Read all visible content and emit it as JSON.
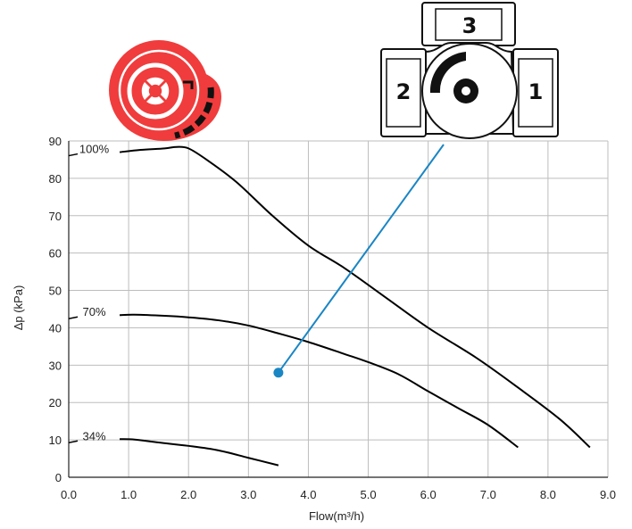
{
  "chart_data": {
    "type": "line",
    "title": "",
    "xlabel": "Flow(m³/h)",
    "ylabel": "Δp (kPa)",
    "xlim": [
      0,
      9
    ],
    "ylim": [
      0,
      90
    ],
    "x_ticks": [
      "0.0",
      "1.0",
      "2.0",
      "3.0",
      "4.0",
      "5.0",
      "6.0",
      "7.0",
      "8.0",
      "9.0"
    ],
    "y_ticks": [
      "0",
      "10",
      "20",
      "30",
      "40",
      "50",
      "60",
      "70",
      "80",
      "90"
    ],
    "grid": true,
    "series": [
      {
        "name": "100%",
        "color": "#000000",
        "points": [
          [
            0.85,
            87
          ],
          [
            1.2,
            87.6
          ],
          [
            1.6,
            88
          ],
          [
            1.8,
            88.4
          ],
          [
            2.0,
            88
          ],
          [
            2.3,
            85
          ],
          [
            2.8,
            79
          ],
          [
            3.4,
            70
          ],
          [
            4.0,
            62
          ],
          [
            4.6,
            56
          ],
          [
            5.3,
            48
          ],
          [
            6.0,
            40
          ],
          [
            6.8,
            32
          ],
          [
            7.5,
            24
          ],
          [
            8.2,
            15.5
          ],
          [
            8.7,
            8
          ]
        ]
      },
      {
        "name": "70%",
        "color": "#000000",
        "points": [
          [
            0.85,
            43.4
          ],
          [
            1.1,
            43.5
          ],
          [
            1.6,
            43.2
          ],
          [
            2.0,
            42.8
          ],
          [
            2.5,
            42
          ],
          [
            3.0,
            40.6
          ],
          [
            3.5,
            38.5
          ],
          [
            4.0,
            36.2
          ],
          [
            4.6,
            33
          ],
          [
            5.0,
            30.8
          ],
          [
            5.5,
            27.6
          ],
          [
            6.0,
            23
          ],
          [
            6.5,
            18.5
          ],
          [
            7.0,
            14
          ],
          [
            7.5,
            8
          ]
        ]
      },
      {
        "name": "34%",
        "color": "#000000",
        "points": [
          [
            0.85,
            10.2
          ],
          [
            1.1,
            10.1
          ],
          [
            1.5,
            9.3
          ],
          [
            2.0,
            8.4
          ],
          [
            2.5,
            7.2
          ],
          [
            3.0,
            5.2
          ],
          [
            3.5,
            3.2
          ]
        ]
      }
    ],
    "operating_point": {
      "x": 3.5,
      "y": 28,
      "color": "#1a86c4"
    },
    "leader_color": "#1a86c4",
    "actuator_color": "#f03c3c",
    "valve_ports": [
      "3",
      "2",
      "1"
    ]
  }
}
